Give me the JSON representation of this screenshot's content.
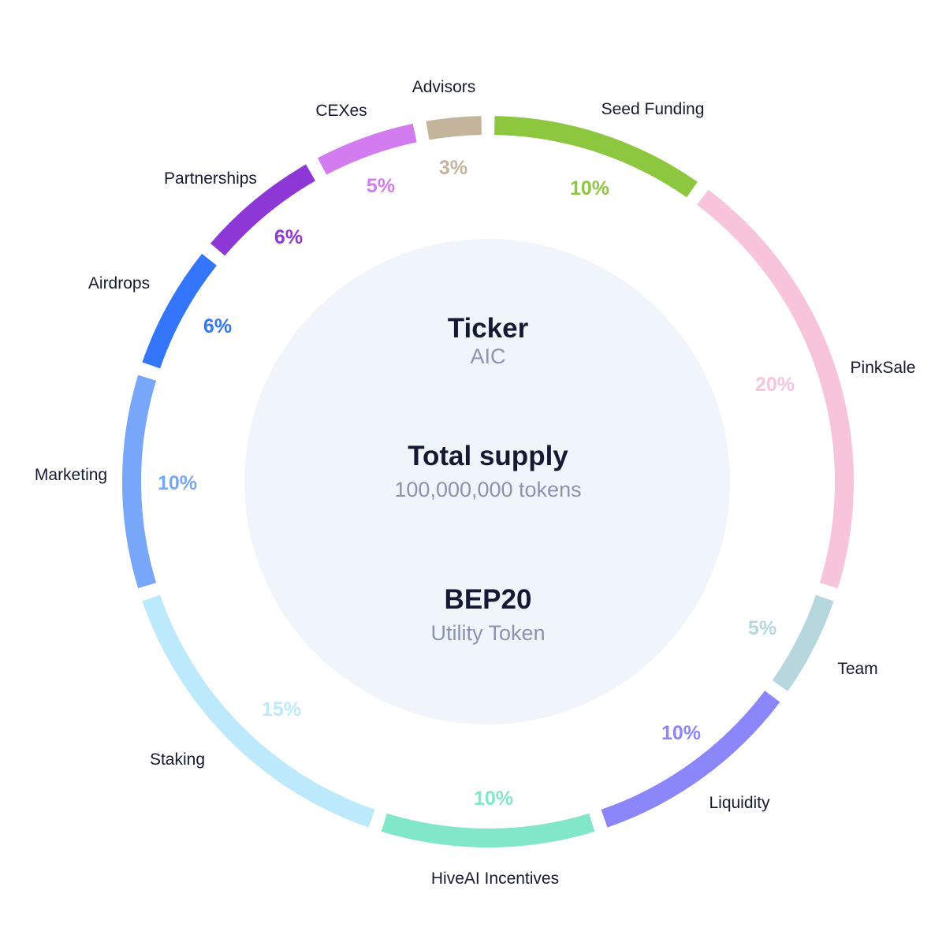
{
  "chart_data": {
    "type": "pie",
    "variant": "donut",
    "start": "top",
    "direction": "clockwise",
    "slices": [
      {
        "label": "Seed Funding",
        "value": 10,
        "display": "10%",
        "color": "#8dc63f"
      },
      {
        "label": "PinkSale",
        "value": 20,
        "display": "20%",
        "color": "#f7c4dc"
      },
      {
        "label": "Team",
        "value": 5,
        "display": "5%",
        "color": "#b7d7df"
      },
      {
        "label": "Liquidity",
        "value": 10,
        "display": "10%",
        "color": "#8b86fa"
      },
      {
        "label": "HiveAI Incentives",
        "value": 10,
        "display": "10%",
        "color": "#82e6c8"
      },
      {
        "label": "Staking",
        "value": 15,
        "display": "15%",
        "color": "#bde9fd"
      },
      {
        "label": "Marketing",
        "value": 10,
        "display": "10%",
        "color": "#78a6f9"
      },
      {
        "label": "Airdrops",
        "value": 6,
        "display": "6%",
        "color": "#3476fb"
      },
      {
        "label": "Partnerships",
        "value": 6,
        "display": "6%",
        "color": "#8e37d7"
      },
      {
        "label": "CEXes",
        "value": 5,
        "display": "5%",
        "color": "#d37cf0"
      },
      {
        "label": "Advisors",
        "value": 3,
        "display": "3%",
        "color": "#c4b49b"
      }
    ]
  },
  "center": {
    "background": "#f0f4fb",
    "ticker_title": "Ticker",
    "ticker_value": "AIC",
    "supply_title": "Total supply",
    "supply_value": "100,000,000 tokens",
    "standard_title": "BEP20",
    "standard_value": "Utility Token"
  }
}
